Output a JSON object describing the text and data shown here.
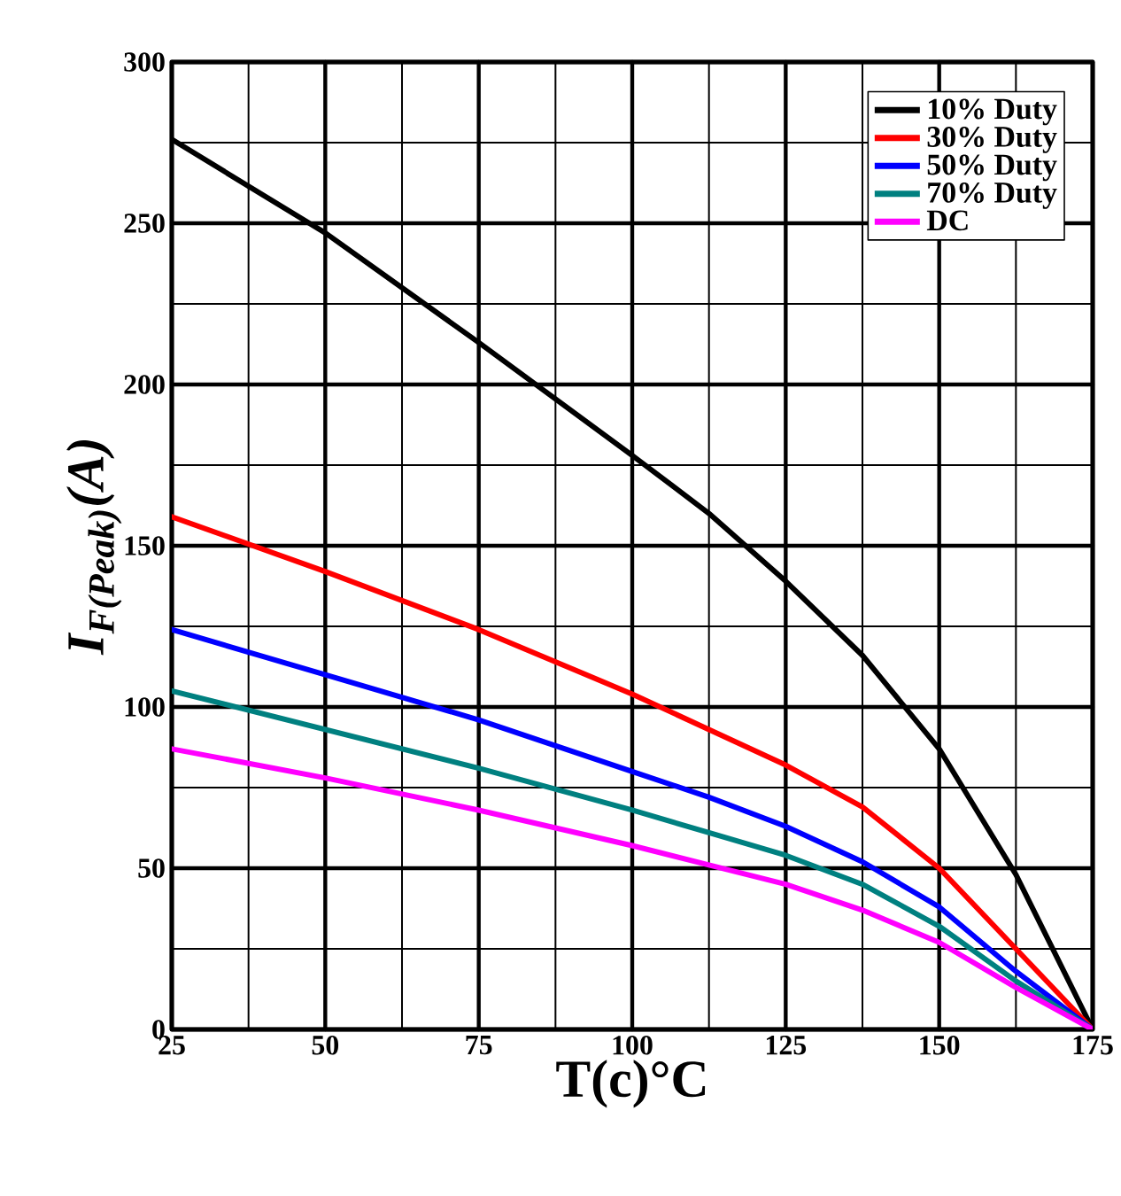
{
  "chart_data": {
    "type": "line",
    "xlabel": "T(c)°C",
    "ylabel": "I$_{F(Peak)}$(A)",
    "x": [
      25,
      50,
      75,
      100,
      112.5,
      125,
      137.5,
      150,
      162.5,
      175
    ],
    "series": [
      {
        "name": "10% Duty",
        "color": "#000000",
        "values": [
          276,
          247,
          213,
          178,
          160,
          139,
          116,
          87,
          48,
          0
        ]
      },
      {
        "name": "30% Duty",
        "color": "#ff0000",
        "values": [
          159,
          142,
          124,
          104,
          93,
          82,
          69,
          50,
          25,
          0
        ]
      },
      {
        "name": "50% Duty",
        "color": "#0000ff",
        "values": [
          124,
          110,
          96,
          80,
          72,
          63,
          52,
          38,
          18,
          0
        ]
      },
      {
        "name": "70% Duty",
        "color": "#008080",
        "values": [
          105,
          93,
          81,
          68,
          61,
          54,
          45,
          32,
          15,
          0
        ]
      },
      {
        "name": "DC",
        "color": "#ff00ff",
        "values": [
          87,
          78,
          68,
          57,
          51,
          45,
          37,
          27,
          13,
          0
        ]
      }
    ],
    "xlim": [
      25,
      175
    ],
    "ylim": [
      0,
      300
    ],
    "xticks": [
      25,
      50,
      75,
      100,
      125,
      150,
      175
    ],
    "yticks": [
      0,
      50,
      100,
      150,
      200,
      250,
      300
    ],
    "grid": true,
    "legend": "top right",
    "marker": "none",
    "line_style": "solid"
  }
}
